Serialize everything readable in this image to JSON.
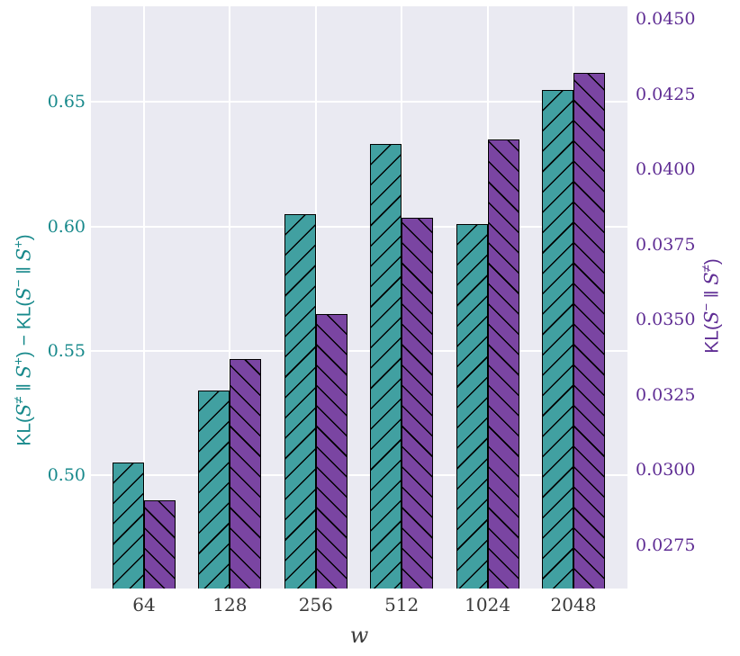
{
  "chart_data": {
    "type": "bar",
    "categories": [
      "64",
      "128",
      "256",
      "512",
      "1024",
      "2048"
    ],
    "xlabel": "w",
    "grid": true,
    "legend": "none",
    "plot_bg": "#eaeaf2",
    "grid_color": "#ffffff",
    "hatch_color": "#000000",
    "x_tick_color": "#3b3b3b",
    "left_axis": {
      "label": "KL(S^≠ ‖ S^+) − KL(S^− ‖ S^+)",
      "tick_labels": [
        "0.50",
        "0.55",
        "0.60",
        "0.65"
      ],
      "tick_values": [
        0.5,
        0.55,
        0.6,
        0.65
      ],
      "ylim": [
        0.4545,
        0.6885
      ],
      "text_color": "#17898b"
    },
    "right_axis": {
      "label": "KL(S^− ‖ S^≠)",
      "tick_labels": [
        "0.0275",
        "0.0300",
        "0.0325",
        "0.0350",
        "0.0375",
        "0.0400",
        "0.0425",
        "0.0450"
      ],
      "tick_values": [
        0.0275,
        0.03,
        0.0325,
        0.035,
        0.0375,
        0.04,
        0.0425,
        0.045
      ],
      "ylim": [
        0.02606,
        0.04542
      ],
      "text_color": "#5f2d94"
    },
    "series": [
      {
        "name": "KL(S^≠ ‖ S^+) − KL(S^− ‖ S^+)",
        "axis": "left",
        "color": "#41a0a1",
        "hatch": "/",
        "values": [
          0.505,
          0.534,
          0.605,
          0.633,
          0.601,
          0.655
        ]
      },
      {
        "name": "KL(S^− ‖ S^≠)",
        "axis": "right",
        "color": "#7a45a2",
        "hatch": "\\",
        "values": [
          0.029,
          0.0337,
          0.0352,
          0.0384,
          0.041,
          0.0432
        ]
      }
    ]
  }
}
